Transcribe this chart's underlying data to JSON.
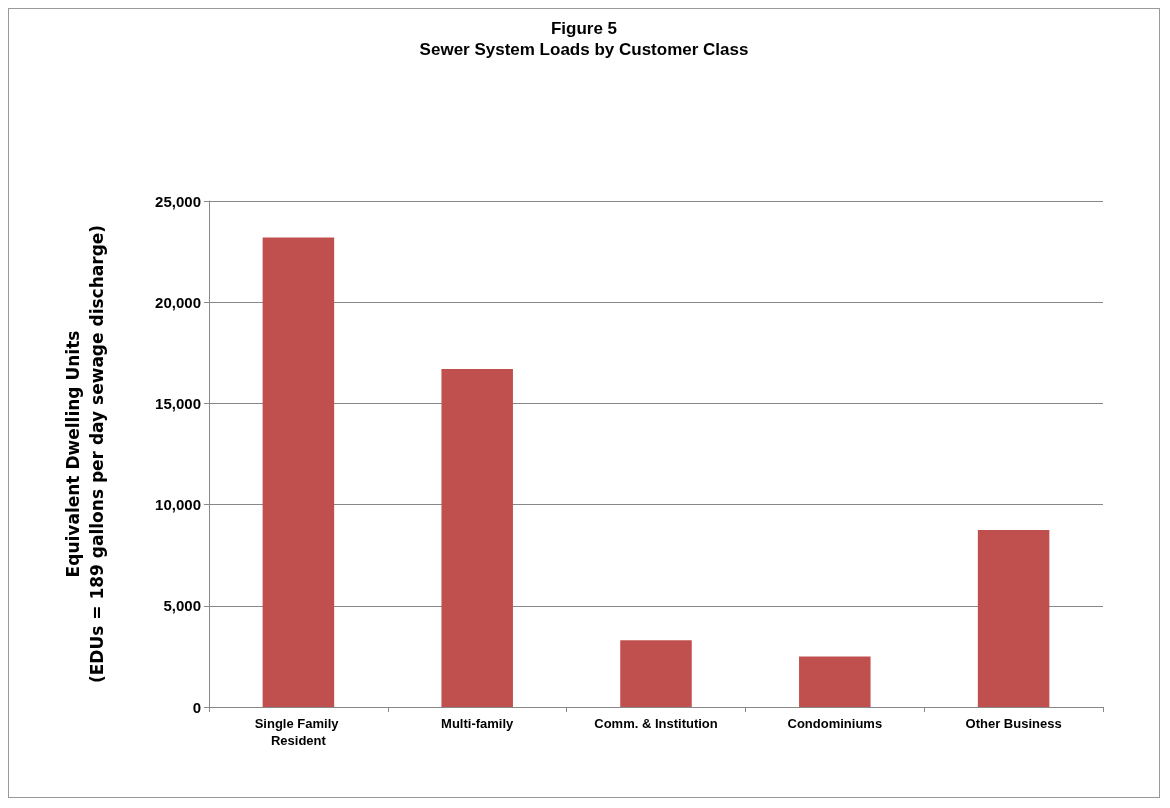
{
  "chart_data": {
    "type": "bar",
    "title": "Figure 5\nSewer System Loads by Customer Class",
    "ylabel": "Equivalent Dwelling Units\n(EDUs = 189 gallons per day sewage discharge)",
    "categories": [
      "Single Family Resident",
      "Multi-family",
      "Comm. & Institution",
      "Condominiums",
      "Other Business"
    ],
    "values": [
      23200,
      16700,
      3300,
      2500,
      8750
    ],
    "color": "#c0504d",
    "ylim": [
      0,
      25000
    ],
    "yticks": [
      0,
      {
        "value": 5000,
        "label": "5,000"
      },
      {
        "value": 10000,
        "label": "10,000"
      },
      {
        "value": 15000,
        "label": "15,000"
      },
      {
        "value": 20000,
        "label": "20,000"
      },
      {
        "value": 25000,
        "label": "25,000"
      }
    ],
    "grid": "y"
  }
}
